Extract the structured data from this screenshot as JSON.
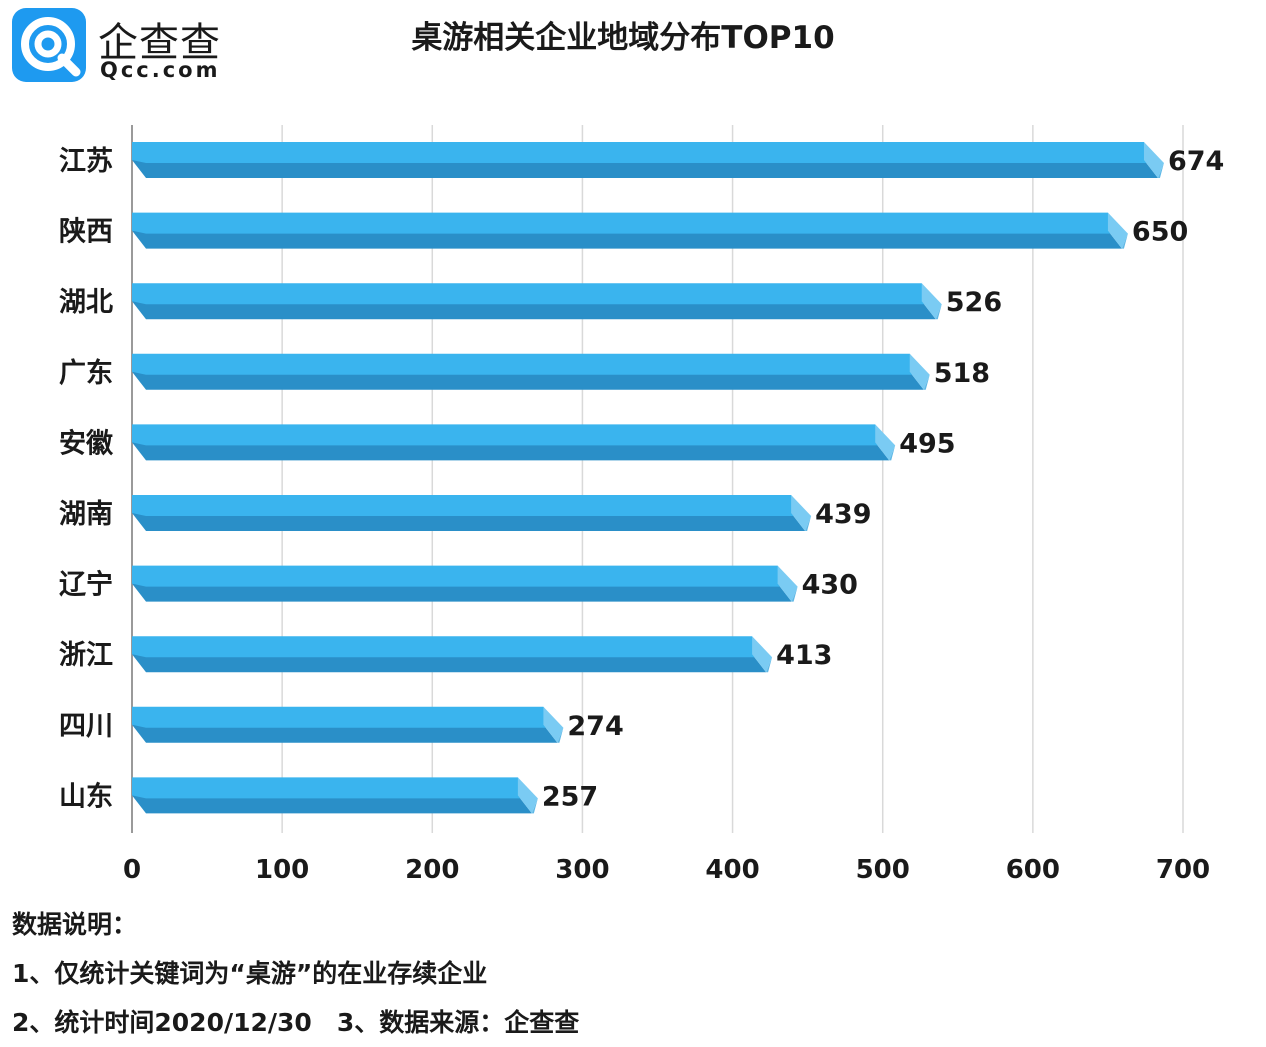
{
  "brand": {
    "name_cn": "企查查",
    "name_en": "Qcc.com",
    "logo_icon": "qcc-magnifier-logo-icon",
    "color": "#1E9AF0"
  },
  "chart_data": {
    "type": "bar",
    "orientation": "horizontal",
    "title": "桌游相关企业地域分布TOP10",
    "xlabel": "",
    "ylabel": "",
    "categories": [
      "江苏",
      "陕西",
      "湖北",
      "广东",
      "安徽",
      "湖南",
      "辽宁",
      "浙江",
      "四川",
      "山东"
    ],
    "values": [
      674,
      650,
      526,
      518,
      495,
      439,
      430,
      413,
      274,
      257
    ],
    "xlim": [
      0,
      700
    ],
    "xticks": [
      "0",
      "100",
      "200",
      "300",
      "400",
      "500",
      "600",
      "700"
    ],
    "grid": "vertical",
    "data_labels": true,
    "bar_color": "#3AB4EE",
    "bar_shadow_color": "#2A8FC8"
  },
  "notes": {
    "heading": "数据说明：",
    "line1": "1、仅统计关键词为“桌游”的在业存续企业",
    "line2": "2、统计时间2020/12/30　3、数据来源：企查查"
  }
}
